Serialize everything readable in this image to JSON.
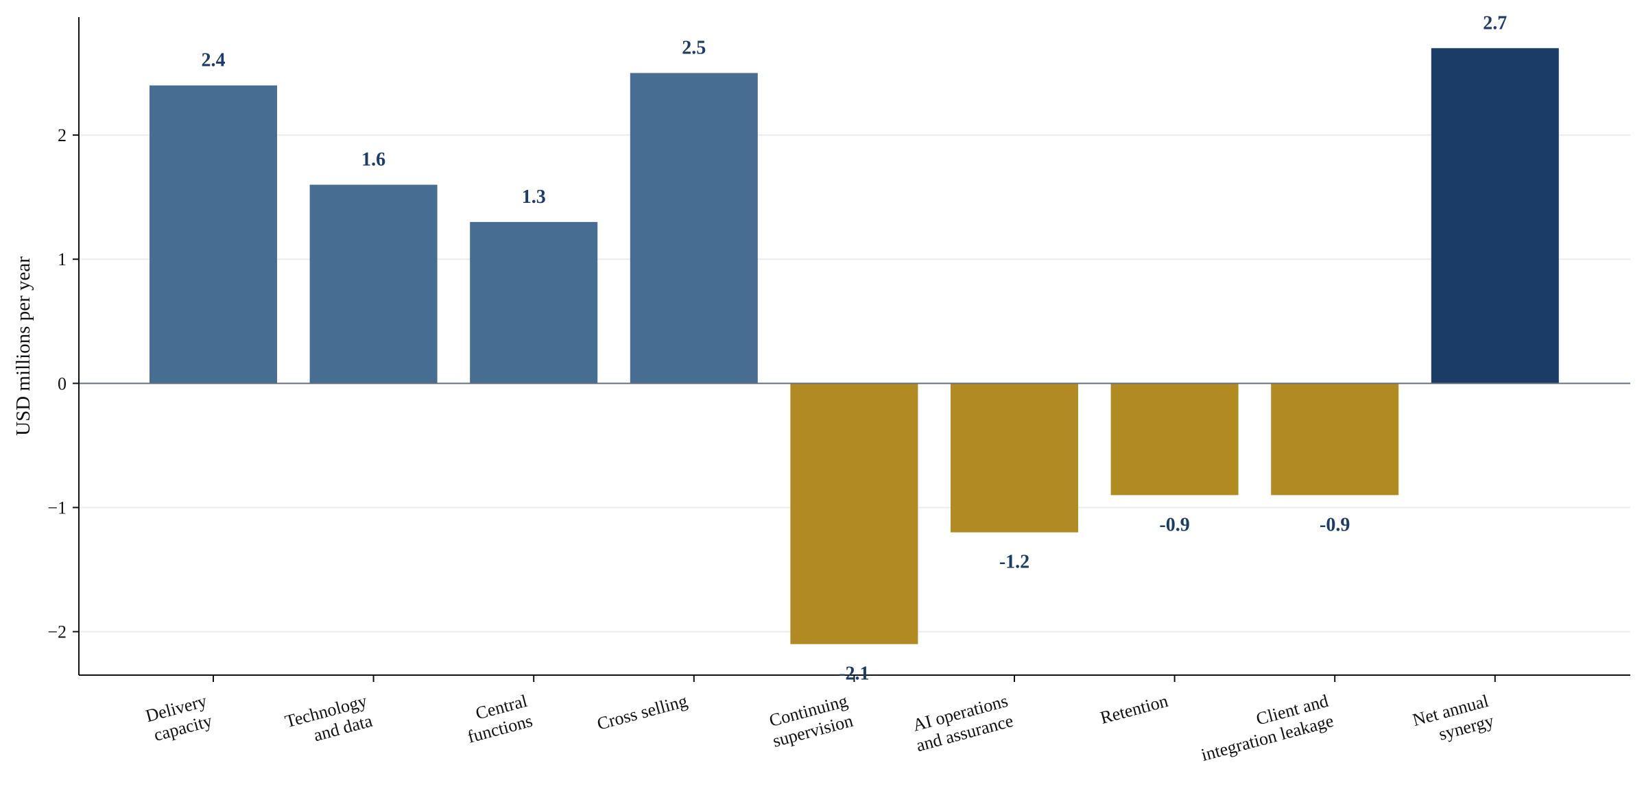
{
  "chart_data": {
    "type": "bar",
    "title": "",
    "xlabel": "",
    "ylabel": "USD millions per year",
    "ylim": [
      -2.35,
      2.95
    ],
    "yticks": [
      -2,
      -1,
      0,
      1,
      2
    ],
    "ytick_labels": [
      "−2",
      "−1",
      "0",
      "1",
      "2"
    ],
    "grid": "horizontal",
    "categories": [
      [
        "Delivery",
        "capacity"
      ],
      [
        "Technology",
        "and data"
      ],
      [
        "Central",
        "functions"
      ],
      [
        "Cross selling"
      ],
      [
        "Continuing",
        "supervision"
      ],
      [
        "AI operations",
        "and assurance"
      ],
      [
        "Retention"
      ],
      [
        "Client and",
        "integration leakage"
      ],
      [
        "Net annual",
        "synergy"
      ]
    ],
    "values": [
      2.4,
      1.6,
      1.3,
      2.5,
      -2.1,
      -1.2,
      -0.9,
      -0.9,
      2.7
    ],
    "value_labels": [
      "2.4",
      "1.6",
      "1.3",
      "2.5",
      "-2.1",
      "-1.2",
      "-0.9",
      "-0.9",
      "2.7"
    ],
    "colors": {
      "positive": "#476d93",
      "negative": "#b28a22",
      "total": "#1b3c66",
      "value_label": "#1b3c66",
      "grid": "#ececec",
      "zero_line": "#66707c",
      "axis": "#111111"
    },
    "bar_kind": [
      "positive",
      "positive",
      "positive",
      "positive",
      "negative",
      "negative",
      "negative",
      "negative",
      "total"
    ]
  }
}
